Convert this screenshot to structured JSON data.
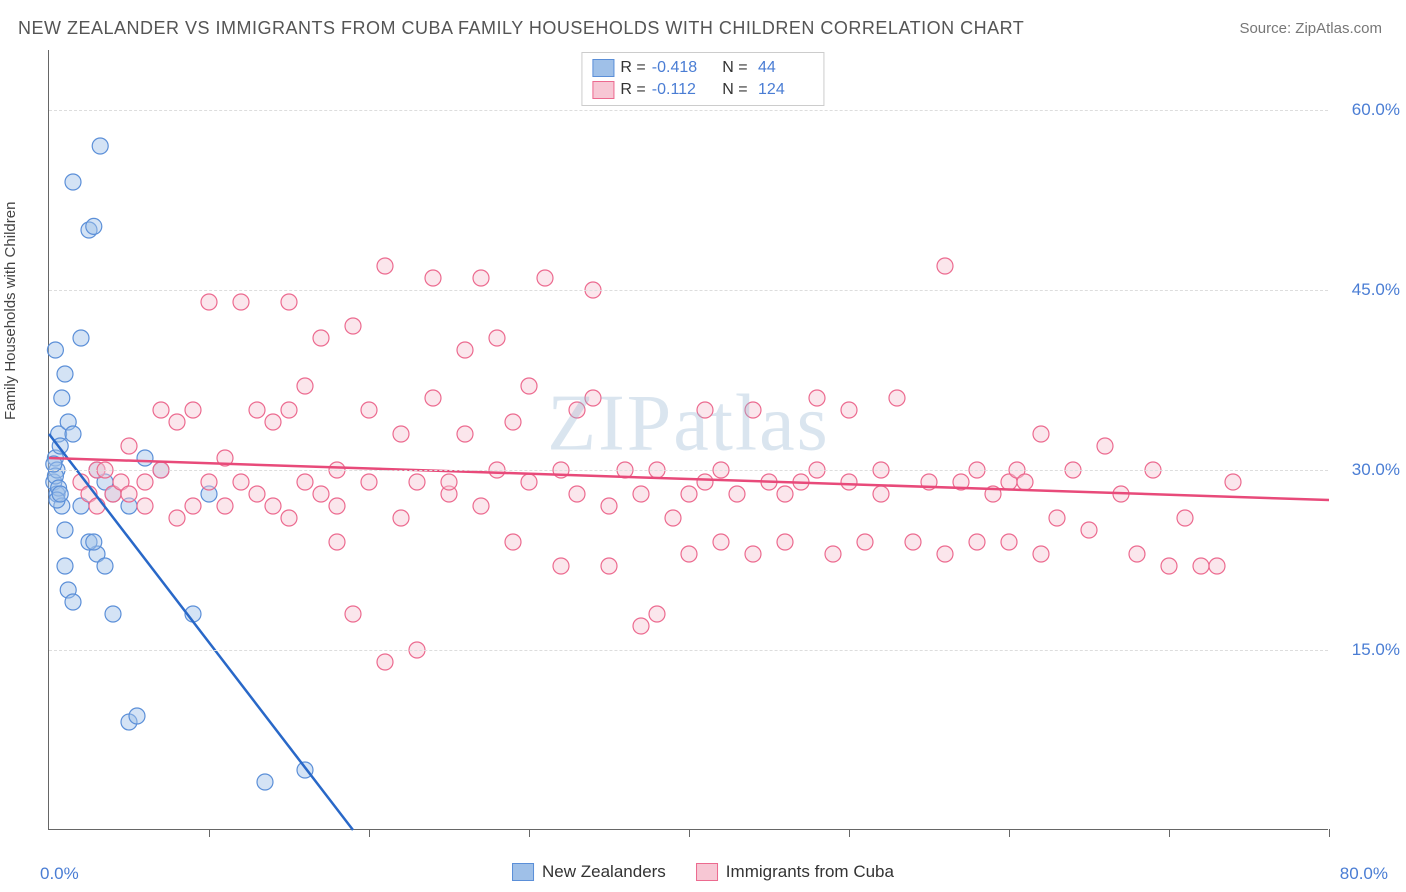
{
  "title": "NEW ZEALANDER VS IMMIGRANTS FROM CUBA FAMILY HOUSEHOLDS WITH CHILDREN CORRELATION CHART",
  "source": "Source: ZipAtlas.com",
  "ylabel": "Family Households with Children",
  "watermark": "ZIPatlas",
  "origin_label": "0.0%",
  "xmax_label": "80.0%",
  "chart": {
    "type": "scatter",
    "xlim": [
      0,
      80
    ],
    "ylim": [
      0,
      65
    ],
    "yticks": [
      {
        "value": 15,
        "label": "15.0%"
      },
      {
        "value": 30,
        "label": "30.0%"
      },
      {
        "value": 45,
        "label": "45.0%"
      },
      {
        "value": 60,
        "label": "60.0%"
      }
    ],
    "xtick_positions": [
      10,
      20,
      30,
      40,
      50,
      60,
      70,
      80
    ],
    "grid_color": "#dddddd",
    "background_color": "#ffffff",
    "label_fontsize": 15,
    "tick_fontsize": 17,
    "tick_color": "#4a7dd4",
    "marker_radius": 8,
    "marker_opacity": 0.45,
    "series": [
      {
        "name": "New Zealanders",
        "fill_color": "#9fc0e8",
        "stroke_color": "#5b8fd8",
        "line_color": "#2968c8",
        "R": "-0.418",
        "N": "44",
        "trend": {
          "x1": 0,
          "y1": 33,
          "x2": 19,
          "y2": 0
        },
        "trend_dashed_ext": {
          "x1": 15,
          "y1": 7,
          "x2": 19,
          "y2": 0
        },
        "points": [
          [
            0.3,
            29
          ],
          [
            0.4,
            31
          ],
          [
            0.5,
            28
          ],
          [
            0.6,
            33
          ],
          [
            0.8,
            27
          ],
          [
            0.5,
            30
          ],
          [
            0.7,
            32
          ],
          [
            0.4,
            29.5
          ],
          [
            0.6,
            28.5
          ],
          [
            0.5,
            27.5
          ],
          [
            0.3,
            30.5
          ],
          [
            0.7,
            28
          ],
          [
            0.8,
            36
          ],
          [
            1.0,
            38
          ],
          [
            1.2,
            34
          ],
          [
            1.5,
            33
          ],
          [
            2.0,
            41
          ],
          [
            2.5,
            50
          ],
          [
            2.8,
            50.3
          ],
          [
            3.0,
            23
          ],
          [
            2.5,
            24
          ],
          [
            3.5,
            22
          ],
          [
            2.0,
            27
          ],
          [
            4.0,
            18
          ],
          [
            5.0,
            9
          ],
          [
            5.5,
            9.5
          ],
          [
            3.2,
            57
          ],
          [
            1.5,
            54
          ],
          [
            0.4,
            40
          ],
          [
            1.0,
            22
          ],
          [
            1.2,
            20
          ],
          [
            2.8,
            24
          ],
          [
            3.0,
            30
          ],
          [
            3.5,
            29
          ],
          [
            4.0,
            28
          ],
          [
            5.0,
            27
          ],
          [
            6.0,
            31
          ],
          [
            7.0,
            30
          ],
          [
            1.0,
            25
          ],
          [
            1.5,
            19
          ],
          [
            9.0,
            18
          ],
          [
            13.5,
            4
          ],
          [
            16.0,
            5
          ],
          [
            10.0,
            28
          ]
        ]
      },
      {
        "name": "Immigrants from Cuba",
        "fill_color": "#f7c7d4",
        "stroke_color": "#ec6a8f",
        "line_color": "#e84a7a",
        "R": "-0.112",
        "N": "124",
        "trend": {
          "x1": 0,
          "y1": 31,
          "x2": 80,
          "y2": 27.5
        },
        "points": [
          [
            2,
            29
          ],
          [
            3,
            30
          ],
          [
            2.5,
            28
          ],
          [
            3,
            27
          ],
          [
            4,
            28
          ],
          [
            3.5,
            30
          ],
          [
            4.5,
            29
          ],
          [
            5,
            28
          ],
          [
            5,
            32
          ],
          [
            6,
            29
          ],
          [
            6,
            27
          ],
          [
            7,
            30
          ],
          [
            7,
            35
          ],
          [
            8,
            26
          ],
          [
            8,
            34
          ],
          [
            9,
            27
          ],
          [
            9,
            35
          ],
          [
            10,
            29
          ],
          [
            10,
            44
          ],
          [
            11,
            27
          ],
          [
            11,
            31
          ],
          [
            12,
            29
          ],
          [
            12,
            44
          ],
          [
            13,
            28
          ],
          [
            13,
            35
          ],
          [
            14,
            27
          ],
          [
            14,
            34
          ],
          [
            15,
            26
          ],
          [
            15,
            35
          ],
          [
            15,
            44
          ],
          [
            16,
            29
          ],
          [
            16,
            37
          ],
          [
            17,
            28
          ],
          [
            17,
            41
          ],
          [
            18,
            24
          ],
          [
            18,
            30
          ],
          [
            18,
            27
          ],
          [
            19,
            18
          ],
          [
            19,
            42
          ],
          [
            20,
            29
          ],
          [
            20,
            35
          ],
          [
            21,
            14
          ],
          [
            21,
            47
          ],
          [
            22,
            26
          ],
          [
            22,
            33
          ],
          [
            23,
            29
          ],
          [
            23,
            15
          ],
          [
            24,
            36
          ],
          [
            24,
            46
          ],
          [
            25,
            28
          ],
          [
            25,
            29
          ],
          [
            26,
            40
          ],
          [
            26,
            33
          ],
          [
            27,
            27
          ],
          [
            27,
            46
          ],
          [
            28,
            30
          ],
          [
            28,
            41
          ],
          [
            29,
            34
          ],
          [
            29,
            24
          ],
          [
            30,
            29
          ],
          [
            30,
            37
          ],
          [
            31,
            46
          ],
          [
            32,
            22
          ],
          [
            32,
            30
          ],
          [
            33,
            28
          ],
          [
            33,
            35
          ],
          [
            34,
            45
          ],
          [
            34,
            36
          ],
          [
            35,
            27
          ],
          [
            35,
            22
          ],
          [
            36,
            30
          ],
          [
            37,
            28
          ],
          [
            37,
            17
          ],
          [
            38,
            18
          ],
          [
            38,
            30
          ],
          [
            39,
            26
          ],
          [
            40,
            28
          ],
          [
            40,
            23
          ],
          [
            41,
            35
          ],
          [
            41,
            29
          ],
          [
            42,
            30
          ],
          [
            42,
            24
          ],
          [
            43,
            28
          ],
          [
            44,
            35
          ],
          [
            44,
            23
          ],
          [
            45,
            29
          ],
          [
            46,
            28
          ],
          [
            46,
            24
          ],
          [
            47,
            29
          ],
          [
            48,
            30
          ],
          [
            48,
            36
          ],
          [
            49,
            23
          ],
          [
            50,
            29
          ],
          [
            50,
            35
          ],
          [
            51,
            24
          ],
          [
            52,
            28
          ],
          [
            52,
            30
          ],
          [
            53,
            36
          ],
          [
            54,
            24
          ],
          [
            55,
            29
          ],
          [
            56,
            47
          ],
          [
            56,
            23
          ],
          [
            57,
            29
          ],
          [
            58,
            24
          ],
          [
            58,
            30
          ],
          [
            59,
            28
          ],
          [
            60,
            29
          ],
          [
            60,
            24
          ],
          [
            60.5,
            30
          ],
          [
            61,
            29
          ],
          [
            62,
            33
          ],
          [
            62,
            23
          ],
          [
            63,
            26
          ],
          [
            64,
            30
          ],
          [
            65,
            25
          ],
          [
            66,
            32
          ],
          [
            67,
            28
          ],
          [
            68,
            23
          ],
          [
            69,
            30
          ],
          [
            70,
            22
          ],
          [
            71,
            26
          ],
          [
            72,
            22
          ],
          [
            73,
            22
          ],
          [
            74,
            29
          ]
        ]
      }
    ]
  }
}
